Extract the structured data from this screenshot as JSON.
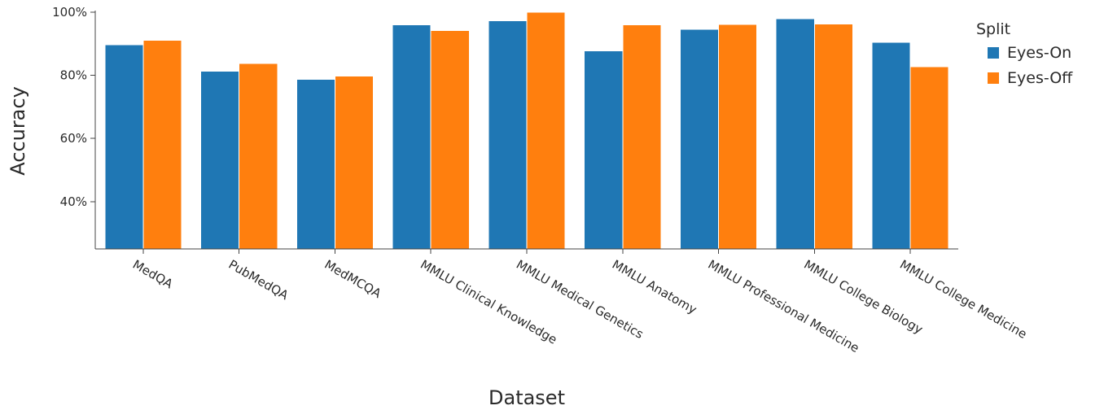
{
  "chart_data": {
    "type": "bar",
    "title": "",
    "xlabel": "Dataset",
    "ylabel": "Accuracy",
    "ylim": [
      0.25,
      1.0
    ],
    "yticks": [
      0.4,
      0.6,
      0.8,
      1.0
    ],
    "ytick_labels": [
      "40%",
      "60%",
      "80%",
      "100%"
    ],
    "categories": [
      "MedQA",
      "PubMedQA",
      "MedMCQA",
      "MMLU Clinical Knowledge",
      "MMLU Medical Genetics",
      "MMLU Anatomy",
      "MMLU Professional Medicine",
      "MMLU College Biology",
      "MMLU College Medicine"
    ],
    "series": [
      {
        "name": "Eyes-On",
        "color": "#1f77b4",
        "values": [
          0.897,
          0.813,
          0.788,
          0.96,
          0.973,
          0.878,
          0.946,
          0.98,
          0.904
        ]
      },
      {
        "name": "Eyes-Off",
        "color": "#ff7f0e",
        "values": [
          0.911,
          0.837,
          0.798,
          0.942,
          1.0,
          0.96,
          0.961,
          0.963,
          0.827
        ]
      }
    ],
    "legend": {
      "title": "Split",
      "position": "top-right"
    },
    "grid": false
  }
}
